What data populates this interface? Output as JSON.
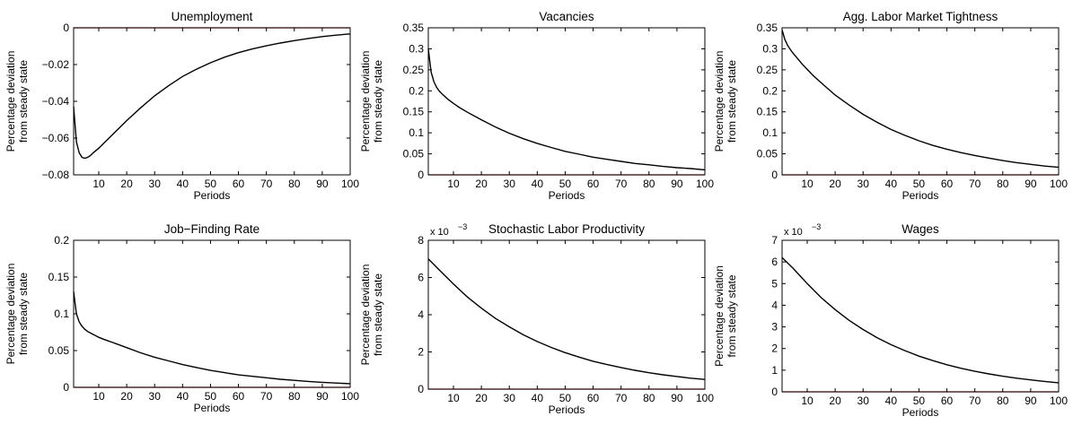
{
  "chart_data": [
    {
      "type": "line",
      "title": "Unemployment",
      "xlabel": "Periods",
      "ylabel": [
        "Percentage deviation",
        "from steady state"
      ],
      "xlim": [
        1,
        100
      ],
      "ylim": [
        -0.08,
        0
      ],
      "xticks": [
        10,
        20,
        30,
        40,
        50,
        60,
        70,
        80,
        90,
        100
      ],
      "yticks": [
        -0.08,
        -0.06,
        -0.04,
        -0.02,
        0
      ],
      "ytick_labels": [
        "−0.08",
        "−0.06",
        "−0.04",
        "−0.02",
        "0"
      ],
      "multiplier": "",
      "grid": false,
      "series": [
        {
          "color": "#000000",
          "x": [
            1,
            2,
            3,
            4,
            5,
            6,
            7,
            8,
            10,
            12,
            15,
            20,
            25,
            30,
            35,
            40,
            45,
            50,
            55,
            60,
            65,
            70,
            75,
            80,
            85,
            90,
            95,
            100
          ],
          "y": [
            -0.043,
            -0.062,
            -0.068,
            -0.0705,
            -0.071,
            -0.0705,
            -0.0695,
            -0.068,
            -0.0655,
            -0.0625,
            -0.058,
            -0.0505,
            -0.0435,
            -0.037,
            -0.0315,
            -0.0265,
            -0.0225,
            -0.019,
            -0.016,
            -0.0135,
            -0.0115,
            -0.0098,
            -0.0083,
            -0.007,
            -0.0058,
            -0.0048,
            -0.004,
            -0.0033
          ]
        },
        {
          "color": "#cc0000",
          "x": [
            1,
            100
          ],
          "y": [
            0,
            0
          ]
        }
      ]
    },
    {
      "type": "line",
      "title": "Vacancies",
      "xlabel": "Periods",
      "ylabel": [
        "Percentage deviation",
        "from steady state"
      ],
      "xlim": [
        1,
        100
      ],
      "ylim": [
        0,
        0.35
      ],
      "xticks": [
        10,
        20,
        30,
        40,
        50,
        60,
        70,
        80,
        90,
        100
      ],
      "yticks": [
        0,
        0.05,
        0.1,
        0.15,
        0.2,
        0.25,
        0.3,
        0.35
      ],
      "ytick_labels": [
        "0",
        "0.05",
        "0.1",
        "0.15",
        "0.2",
        "0.25",
        "0.3",
        "0.35"
      ],
      "multiplier": "",
      "grid": false,
      "series": [
        {
          "color": "#000000",
          "x": [
            1,
            2,
            3,
            4,
            5,
            6,
            8,
            10,
            12,
            15,
            20,
            25,
            30,
            35,
            40,
            45,
            50,
            55,
            60,
            65,
            70,
            75,
            80,
            85,
            90,
            95,
            100
          ],
          "y": [
            0.3,
            0.245,
            0.222,
            0.208,
            0.199,
            0.192,
            0.18,
            0.17,
            0.161,
            0.149,
            0.131,
            0.114,
            0.099,
            0.086,
            0.075,
            0.065,
            0.056,
            0.049,
            0.042,
            0.037,
            0.032,
            0.027,
            0.024,
            0.02,
            0.017,
            0.015,
            0.012
          ]
        },
        {
          "color": "#cc0000",
          "x": [
            1,
            100
          ],
          "y": [
            0,
            0
          ]
        }
      ]
    },
    {
      "type": "line",
      "title": "Agg. Labor Market Tightness",
      "xlabel": "Periods",
      "ylabel": [
        "Percentage deviation",
        "from steady state"
      ],
      "xlim": [
        1,
        100
      ],
      "ylim": [
        0,
        0.35
      ],
      "xticks": [
        10,
        20,
        30,
        40,
        50,
        60,
        70,
        80,
        90,
        100
      ],
      "yticks": [
        0,
        0.05,
        0.1,
        0.15,
        0.2,
        0.25,
        0.3,
        0.35
      ],
      "ytick_labels": [
        "0",
        "0.05",
        "0.1",
        "0.15",
        "0.2",
        "0.25",
        "0.3",
        "0.35"
      ],
      "multiplier": "",
      "grid": false,
      "series": [
        {
          "color": "#000000",
          "x": [
            1,
            2,
            3,
            4,
            5,
            6,
            8,
            10,
            12,
            15,
            20,
            25,
            30,
            35,
            40,
            45,
            50,
            55,
            60,
            65,
            70,
            75,
            80,
            85,
            90,
            95,
            100
          ],
          "y": [
            0.345,
            0.322,
            0.308,
            0.298,
            0.289,
            0.281,
            0.265,
            0.251,
            0.237,
            0.219,
            0.19,
            0.166,
            0.144,
            0.125,
            0.108,
            0.094,
            0.081,
            0.07,
            0.061,
            0.053,
            0.046,
            0.04,
            0.034,
            0.029,
            0.025,
            0.021,
            0.018
          ]
        },
        {
          "color": "#cc0000",
          "x": [
            1,
            100
          ],
          "y": [
            0,
            0
          ]
        }
      ]
    },
    {
      "type": "line",
      "title": "Job−Finding Rate",
      "xlabel": "Periods",
      "ylabel": [
        "Percentage deviation",
        "from steady state"
      ],
      "xlim": [
        1,
        100
      ],
      "ylim": [
        0,
        0.2
      ],
      "xticks": [
        10,
        20,
        30,
        40,
        50,
        60,
        70,
        80,
        90,
        100
      ],
      "yticks": [
        0,
        0.05,
        0.1,
        0.15,
        0.2
      ],
      "ytick_labels": [
        "0",
        "0.05",
        "0.1",
        "0.15",
        "0.2"
      ],
      "multiplier": "",
      "grid": false,
      "series": [
        {
          "color": "#000000",
          "x": [
            1,
            2,
            3,
            4,
            5,
            6,
            8,
            10,
            12,
            15,
            20,
            25,
            30,
            35,
            40,
            45,
            50,
            55,
            60,
            65,
            70,
            75,
            80,
            85,
            90,
            95,
            100
          ],
          "y": [
            0.13,
            0.1,
            0.089,
            0.083,
            0.079,
            0.076,
            0.072,
            0.068,
            0.065,
            0.061,
            0.054,
            0.047,
            0.041,
            0.036,
            0.031,
            0.027,
            0.023,
            0.02,
            0.017,
            0.015,
            0.013,
            0.011,
            0.0095,
            0.008,
            0.0068,
            0.0058,
            0.005
          ]
        },
        {
          "color": "#cc0000",
          "x": [
            1,
            100
          ],
          "y": [
            0,
            0
          ]
        }
      ]
    },
    {
      "type": "line",
      "title": "Stochastic Labor Productivity",
      "xlabel": "Periods",
      "ylabel": [
        "Percentage deviation",
        "from steady state"
      ],
      "xlim": [
        1,
        100
      ],
      "ylim": [
        0,
        8
      ],
      "xticks": [
        10,
        20,
        30,
        40,
        50,
        60,
        70,
        80,
        90,
        100
      ],
      "yticks": [
        0,
        2,
        4,
        6,
        8
      ],
      "ytick_labels": [
        "0",
        "2",
        "4",
        "6",
        "8"
      ],
      "multiplier": "x 10",
      "multiplier_exp": "−3",
      "grid": false,
      "series": [
        {
          "color": "#000000",
          "x": [
            1,
            5,
            10,
            15,
            20,
            25,
            30,
            35,
            40,
            45,
            50,
            55,
            60,
            65,
            70,
            75,
            80,
            85,
            90,
            95,
            100
          ],
          "y": [
            7.0,
            6.4,
            5.65,
            4.95,
            4.35,
            3.8,
            3.35,
            2.92,
            2.56,
            2.24,
            1.96,
            1.72,
            1.5,
            1.32,
            1.16,
            1.01,
            0.88,
            0.77,
            0.68,
            0.59,
            0.52
          ]
        },
        {
          "color": "#cc0000",
          "x": [
            1,
            100
          ],
          "y": [
            0,
            0
          ]
        }
      ]
    },
    {
      "type": "line",
      "title": "Wages",
      "xlabel": "Periods",
      "ylabel": [
        "Percentage deviation",
        "from steady state"
      ],
      "xlim": [
        1,
        100
      ],
      "ylim": [
        0,
        7
      ],
      "xticks": [
        10,
        20,
        30,
        40,
        50,
        60,
        70,
        80,
        90,
        100
      ],
      "yticks": [
        0,
        1,
        2,
        3,
        4,
        5,
        6,
        7
      ],
      "ytick_labels": [
        "0",
        "1",
        "2",
        "3",
        "4",
        "5",
        "6",
        "7"
      ],
      "multiplier": "x 10",
      "multiplier_exp": "−3",
      "grid": false,
      "series": [
        {
          "color": "#000000",
          "x": [
            1,
            5,
            10,
            15,
            20,
            25,
            30,
            35,
            40,
            45,
            50,
            55,
            60,
            65,
            70,
            75,
            80,
            85,
            90,
            95,
            100
          ],
          "y": [
            6.2,
            5.7,
            5.0,
            4.35,
            3.8,
            3.3,
            2.88,
            2.5,
            2.18,
            1.9,
            1.65,
            1.44,
            1.25,
            1.09,
            0.95,
            0.83,
            0.72,
            0.63,
            0.55,
            0.48,
            0.42
          ]
        },
        {
          "color": "#cc0000",
          "x": [
            1,
            100
          ],
          "y": [
            0,
            0
          ]
        }
      ]
    }
  ]
}
